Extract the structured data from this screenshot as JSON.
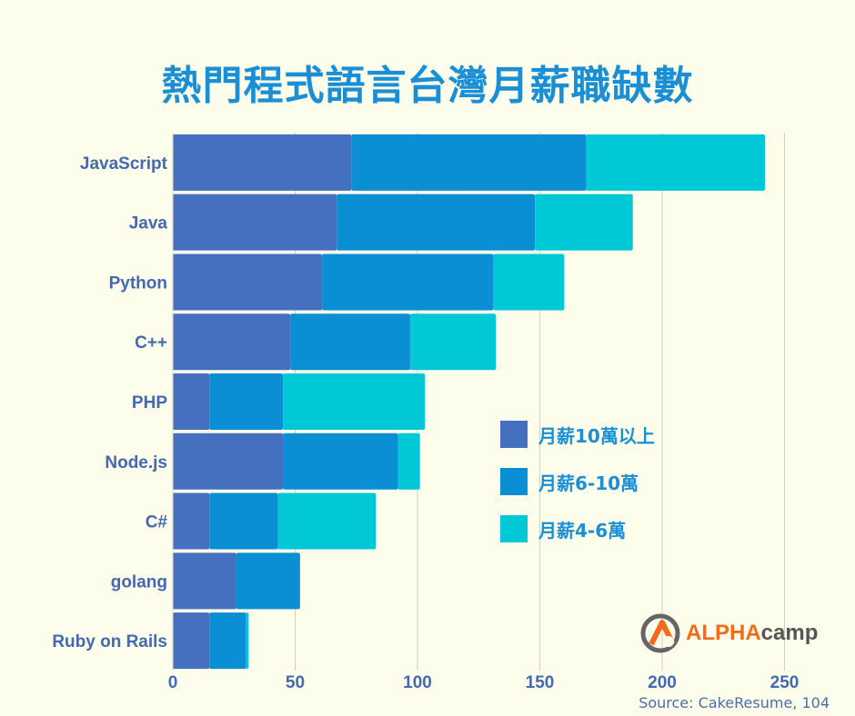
{
  "chart_data": {
    "type": "bar",
    "orientation": "horizontal",
    "stacked": true,
    "title": "熱門程式語言台灣月薪職缺數",
    "categories": [
      "JavaScript",
      "Java",
      "Python",
      "C++",
      "PHP",
      "Node.js",
      "C#",
      "golang",
      "Ruby on Rails"
    ],
    "series": [
      {
        "name": "月薪10萬以上",
        "color": "#4570bf",
        "values": [
          73,
          67,
          61,
          48,
          15,
          45,
          15,
          26,
          15
        ]
      },
      {
        "name": "月薪6-10萬",
        "color": "#0a8fd4",
        "values": [
          96,
          81,
          70,
          49,
          30,
          47,
          28,
          26,
          15
        ]
      },
      {
        "name": "月薪4-6萬",
        "color": "#00c8d7",
        "values": [
          73,
          40,
          29,
          35,
          58,
          9,
          40,
          0,
          1
        ]
      }
    ],
    "x_ticks": [
      0,
      50,
      100,
      150,
      200,
      250
    ],
    "xlim": [
      0,
      265
    ],
    "grid": "vertical",
    "legend_position": "right"
  },
  "logo": {
    "alpha": "ALPHA",
    "camp": "camp"
  },
  "source": "Source: CakeResume, 104"
}
